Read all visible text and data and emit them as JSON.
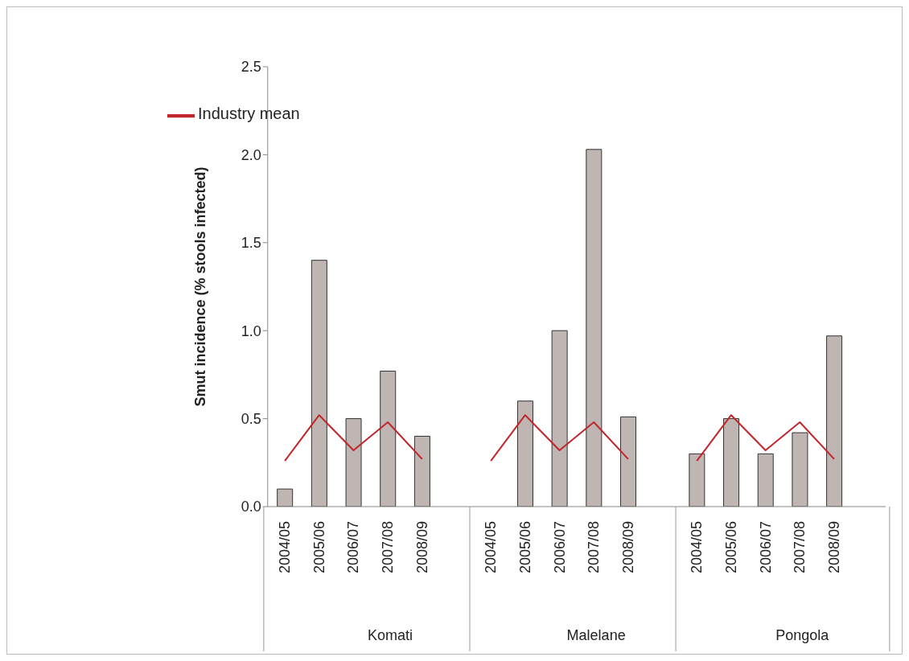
{
  "chart_data": {
    "type": "bar",
    "ylabel": "Smut incidence (% stools infected)",
    "categories": [
      "2004/05",
      "2005/06",
      "2006/07",
      "2007/08",
      "2008/09",
      null,
      "2004/05",
      "2005/06",
      "2006/07",
      "2007/08",
      "2008/09",
      null,
      "2004/05",
      "2005/06",
      "2006/07",
      "2007/08",
      "2008/09",
      null
    ],
    "series": [
      {
        "color": "#bfb5b2",
        "values": [
          0.1,
          1.4,
          0.5,
          0.77,
          0.4,
          null,
          null,
          0.6,
          1.0,
          2.03,
          0.51,
          null,
          0.3,
          0.5,
          0.3,
          0.42,
          0.97,
          null
        ]
      },
      {
        "type": "line",
        "name": "Industry mean",
        "color": "#c0262c",
        "values": [
          0.26,
          0.52,
          0.32,
          0.48,
          0.27,
          null,
          0.26,
          0.52,
          0.32,
          0.48,
          0.27,
          null,
          0.26,
          0.52,
          0.32,
          0.48,
          0.27,
          null
        ]
      }
    ],
    "annotations": [
      "Komati",
      "Malelane",
      "Pongola"
    ],
    "ylim": [
      0,
      2.5
    ],
    "yticks": [
      {
        "value": 0,
        "label": "0.0"
      },
      {
        "value": 0.5,
        "label": "0.5"
      },
      {
        "value": 1,
        "label": "1.0"
      },
      {
        "value": 1.5,
        "label": "1.5"
      },
      {
        "value": 2,
        "label": "2.0"
      },
      {
        "value": 2.5,
        "label": "2.5"
      }
    ],
    "legend": "top left",
    "marker": "none"
  }
}
